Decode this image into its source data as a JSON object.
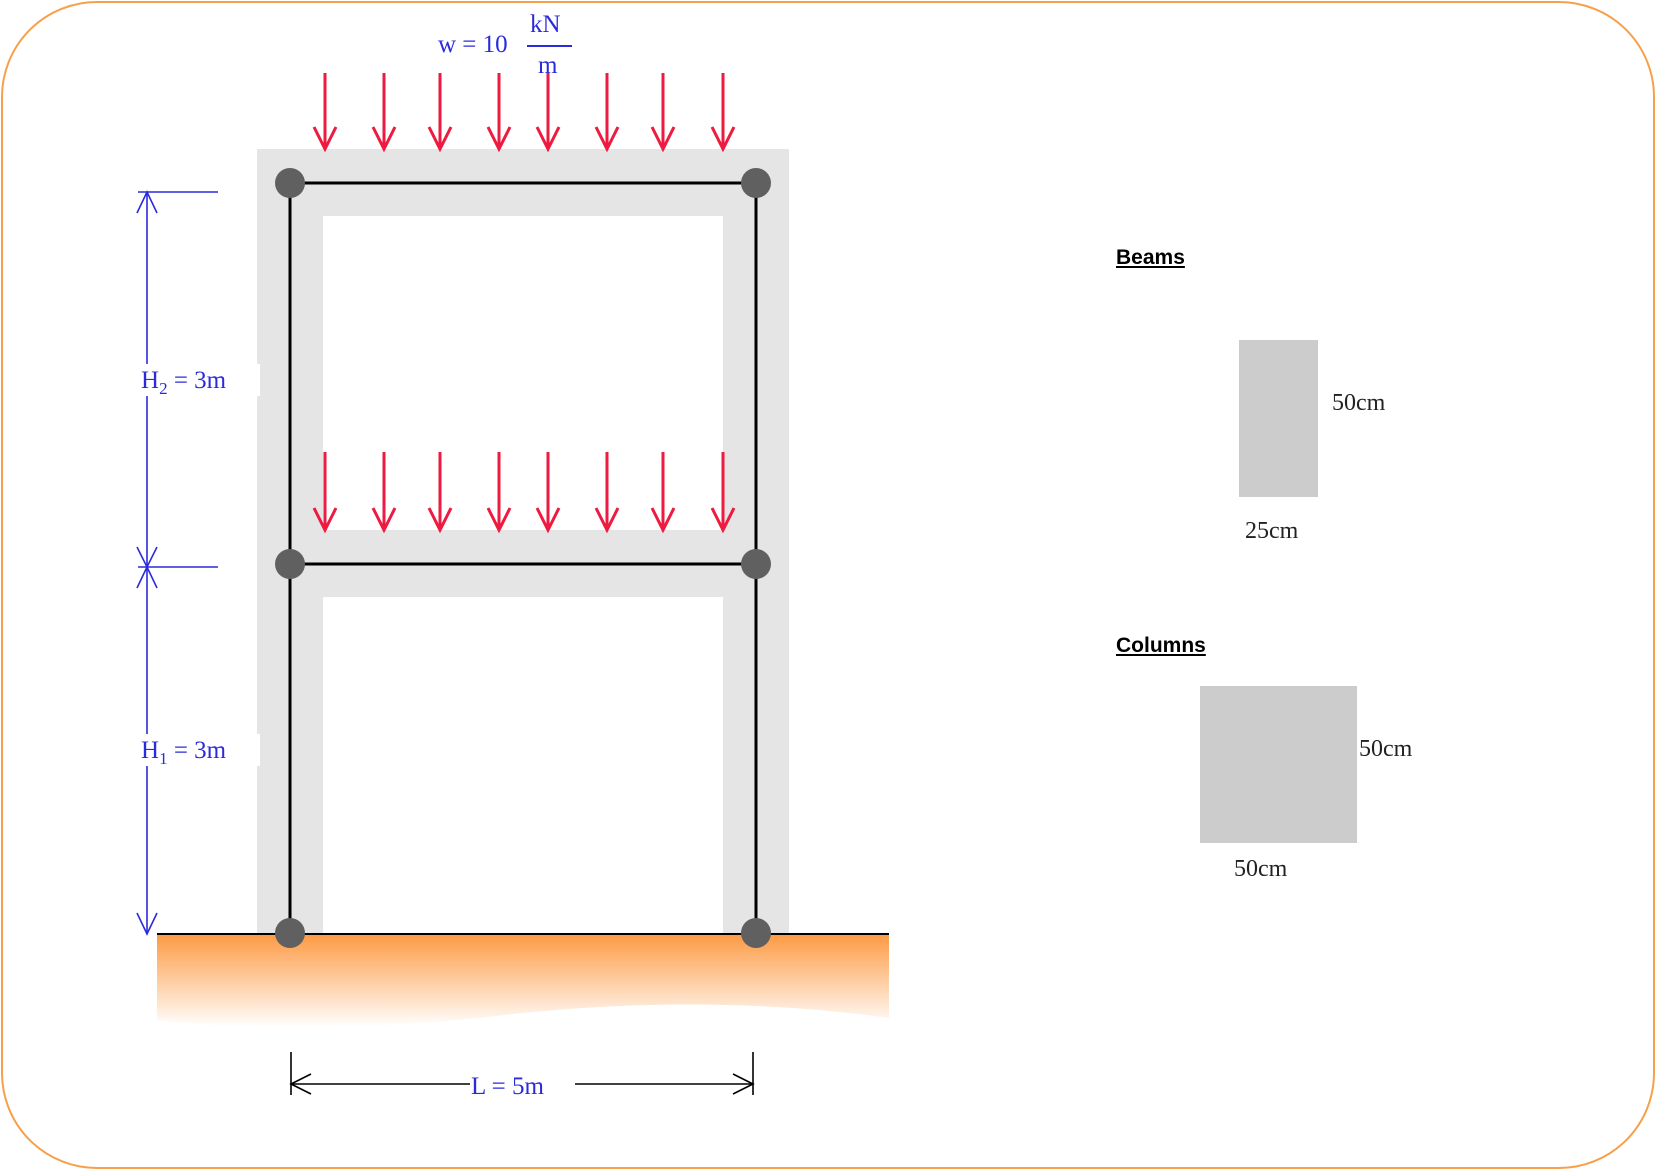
{
  "colors": {
    "frame_border": "#f7a04a",
    "member_shade": "#e5e5e5",
    "member_line": "#000000",
    "node": "#606060",
    "load_arrow": "#ee1a3f",
    "dimension": "#2b2bdc",
    "ground_top": "#fd9a44",
    "ground_bottom": "#ffffff",
    "section_fill": "#cccccc"
  },
  "load": {
    "prefix": "w = 10",
    "numerator": "kN",
    "denominator": "m",
    "arrow_count_per_floor": 8
  },
  "dimensions": {
    "h2_main": "H",
    "h2_sub": "2",
    "h2_rest": " = 3m",
    "h1_main": "H",
    "h1_sub": "1",
    "h1_rest": " = 3m",
    "span": "L = 5m"
  },
  "beams": {
    "title": "Beams",
    "height_label": "50cm",
    "width_label": "25cm"
  },
  "columns": {
    "title": "Columns",
    "height_label": "50cm",
    "width_label": "50cm"
  }
}
